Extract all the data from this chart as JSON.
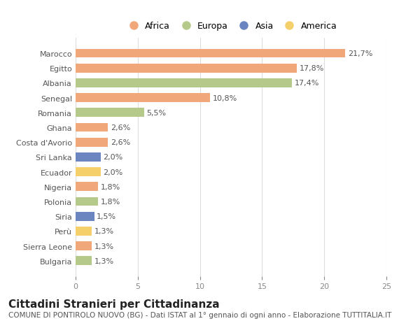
{
  "countries": [
    "Bulgaria",
    "Sierra Leone",
    "Perù",
    "Siria",
    "Polonia",
    "Nigeria",
    "Ecuador",
    "Sri Lanka",
    "Costa d'Avorio",
    "Ghana",
    "Romania",
    "Senegal",
    "Albania",
    "Egitto",
    "Marocco"
  ],
  "values": [
    1.3,
    1.3,
    1.3,
    1.5,
    1.8,
    1.8,
    2.0,
    2.0,
    2.6,
    2.6,
    5.5,
    10.8,
    17.4,
    17.8,
    21.7
  ],
  "labels": [
    "1,3%",
    "1,3%",
    "1,3%",
    "1,5%",
    "1,8%",
    "1,8%",
    "2,0%",
    "2,0%",
    "2,6%",
    "2,6%",
    "5,5%",
    "10,8%",
    "17,4%",
    "17,8%",
    "21,7%"
  ],
  "continents": [
    "Europa",
    "Africa",
    "America",
    "Asia",
    "Europa",
    "Africa",
    "America",
    "Asia",
    "Africa",
    "Africa",
    "Europa",
    "Africa",
    "Europa",
    "Africa",
    "Africa"
  ],
  "continent_colors": {
    "Africa": "#F0A87A",
    "Europa": "#B5C98A",
    "Asia": "#6B85C0",
    "America": "#F5D06A"
  },
  "legend_order": [
    "Africa",
    "Europa",
    "Asia",
    "America"
  ],
  "title": "Cittadini Stranieri per Cittadinanza",
  "subtitle": "COMUNE DI PONTIROLO NUOVO (BG) - Dati ISTAT al 1° gennaio di ogni anno - Elaborazione TUTTITALIA.IT",
  "xlim": [
    0,
    25
  ],
  "xticks": [
    0,
    5,
    10,
    15,
    20,
    25
  ],
  "background_color": "#ffffff",
  "bar_height": 0.6,
  "title_fontsize": 11,
  "subtitle_fontsize": 7.5,
  "label_fontsize": 8,
  "tick_fontsize": 8,
  "legend_fontsize": 9
}
